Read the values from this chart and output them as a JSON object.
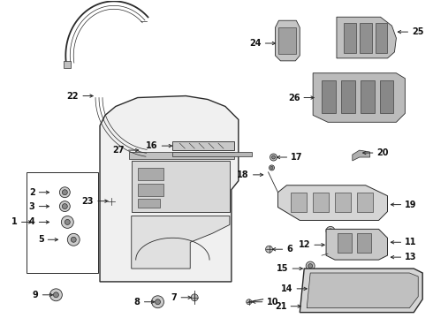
{
  "bg_color": "#ffffff",
  "fig_width": 4.9,
  "fig_height": 3.6,
  "dpi": 100,
  "line_color": "#2a2a2a",
  "label_color": "#111111",
  "label_fontsize": 7.0
}
